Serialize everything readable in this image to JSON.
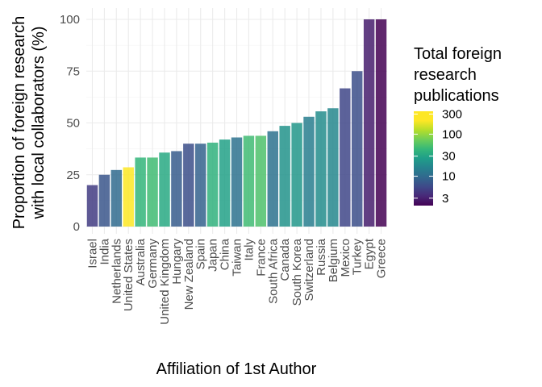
{
  "chart_data": {
    "type": "bar",
    "xlabel": "Affiliation of 1st Author",
    "ylabel_lines": [
      "Proportion of foreign research",
      "with local collaborators (%)"
    ],
    "ylim": [
      0,
      100
    ],
    "yticks": [
      0,
      25,
      50,
      75,
      100
    ],
    "grid": true,
    "legend": {
      "title_lines": [
        "Total foreign",
        "research",
        "publications"
      ],
      "placement": "right",
      "scale": "log",
      "range": [
        2,
        350
      ],
      "ticks": [
        3,
        10,
        30,
        100,
        300
      ]
    },
    "categories": [
      "Israel",
      "India",
      "Netherlands",
      "United States",
      "Australia",
      "Germany",
      "United Kingdom",
      "Hungary",
      "New Zealand",
      "Spain",
      "Japan",
      "China",
      "Taiwan",
      "Italy",
      "France",
      "South Africa",
      "Canada",
      "South Korea",
      "Switzerland",
      "Russia",
      "Belgium",
      "Mexico",
      "Turkey",
      "Egypt",
      "Greece"
    ],
    "values": [
      20,
      25,
      27.3,
      28.6,
      33.3,
      33.3,
      35.7,
      36.4,
      40,
      40,
      40.5,
      42,
      43,
      43.8,
      43.8,
      46,
      48.6,
      50,
      53,
      55.6,
      57.1,
      66.7,
      75,
      100,
      100
    ],
    "publications": [
      5,
      8,
      12,
      350,
      60,
      70,
      45,
      9,
      7,
      10,
      55,
      38,
      14,
      70,
      80,
      14,
      28,
      30,
      18,
      25,
      22,
      6,
      7,
      3,
      2
    ]
  }
}
